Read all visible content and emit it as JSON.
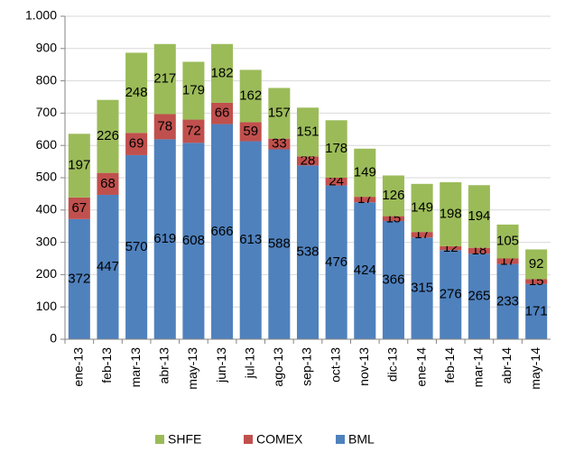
{
  "chart_data": {
    "type": "stacked-bar",
    "categories": [
      "ene-13",
      "feb-13",
      "mar-13",
      "abr-13",
      "may-13",
      "jun-13",
      "jul-13",
      "ago-13",
      "sep-13",
      "oct-13",
      "nov-13",
      "dic-13",
      "ene-14",
      "feb-14",
      "mar-14",
      "abr-14",
      "may-14"
    ],
    "series": [
      {
        "name": "SHFE",
        "color": "#9bbb59",
        "values": [
          197,
          226,
          248,
          217,
          179,
          182,
          162,
          157,
          151,
          178,
          149,
          126,
          149,
          198,
          194,
          105,
          92
        ]
      },
      {
        "name": "COMEX",
        "color": "#c0504d",
        "values": [
          67,
          68,
          69,
          78,
          72,
          66,
          59,
          33,
          28,
          24,
          17,
          15,
          17,
          12,
          18,
          17,
          15
        ]
      },
      {
        "name": "BML",
        "color": "#4f81bd",
        "values": [
          372,
          447,
          570,
          619,
          608,
          666,
          613,
          588,
          538,
          476,
          424,
          366,
          315,
          276,
          265,
          233,
          171
        ]
      }
    ],
    "ylim": [
      0,
      1000
    ],
    "yticks": [
      0,
      100,
      200,
      300,
      400,
      500,
      600,
      700,
      800,
      900,
      {
        "value": 1000,
        "label": "1.000"
      }
    ],
    "grid": true,
    "legend": "bottom"
  }
}
